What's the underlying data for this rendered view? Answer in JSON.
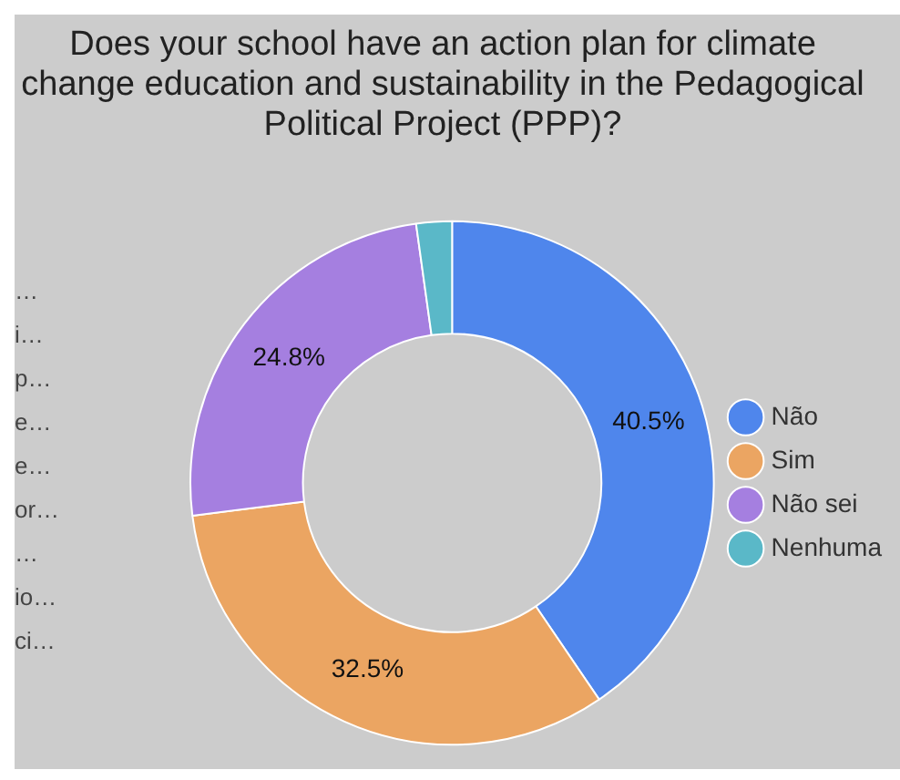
{
  "chart_data": {
    "type": "donut",
    "title": "Does your school have an action plan for climate change education and sustainability in the Pedagogical Political Project (PPP)?",
    "categories": [
      "Não",
      "Sim",
      "Não sei",
      "Nenhuma"
    ],
    "values": [
      40.5,
      32.5,
      24.8,
      2.2
    ],
    "colors": [
      "#4f86ec",
      "#eba562",
      "#a57fe0",
      "#5ab8c8"
    ],
    "value_labels": [
      "40.5%",
      "32.5%",
      "24.8%",
      null
    ],
    "legend": "right",
    "annotations": [
      "…",
      "i…",
      "p…",
      "e…",
      "e…",
      "or…",
      "…",
      "io…",
      "ci…"
    ]
  }
}
